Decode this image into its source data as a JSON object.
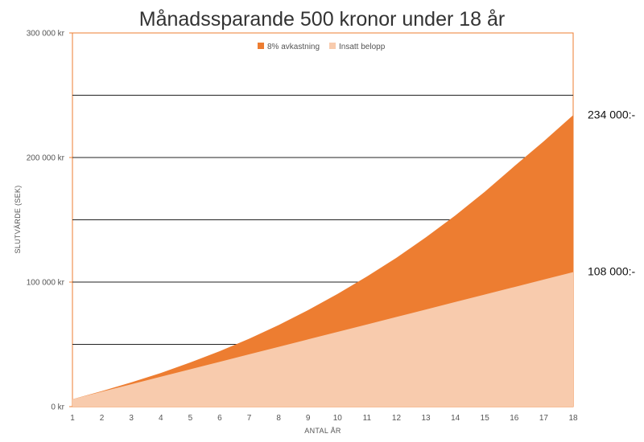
{
  "chart_data": {
    "type": "area",
    "title": "Månadssparande 500 kronor under 18 år",
    "xlabel": "ANTAL ÅR",
    "ylabel": "SLUTVÄRDE (SEK)",
    "x": [
      1,
      2,
      3,
      4,
      5,
      6,
      7,
      8,
      9,
      10,
      11,
      12,
      13,
      14,
      15,
      16,
      17,
      18
    ],
    "y_ticks": [
      {
        "value": 0,
        "label": "0 kr"
      },
      {
        "value": 100000,
        "label": "100 000 kr"
      },
      {
        "value": 200000,
        "label": "200 000 kr"
      },
      {
        "value": 300000,
        "label": "300 000 kr"
      }
    ],
    "ylim": [
      0,
      300000
    ],
    "grid_values": [
      50000,
      100000,
      150000,
      200000,
      250000
    ],
    "series": [
      {
        "name": "8% avkastning",
        "color": "#ED7D31",
        "values": [
          6000,
          12500,
          19500,
          27000,
          35500,
          44500,
          54500,
          65500,
          77500,
          90500,
          104500,
          119500,
          136000,
          153500,
          172500,
          193000,
          213000,
          234000
        ]
      },
      {
        "name": "Insatt belopp",
        "color": "#F8CBAD",
        "values": [
          6000,
          12000,
          18000,
          24000,
          30000,
          36000,
          42000,
          48000,
          54000,
          60000,
          66000,
          72000,
          78000,
          84000,
          90000,
          96000,
          102000,
          108000
        ]
      }
    ],
    "legend": {
      "position": "top-center"
    },
    "annotations": [
      {
        "text": "234 000:-",
        "y": 234000
      },
      {
        "text": "108 000:-",
        "y": 108000
      }
    ],
    "border_color": "#ED7D31"
  }
}
